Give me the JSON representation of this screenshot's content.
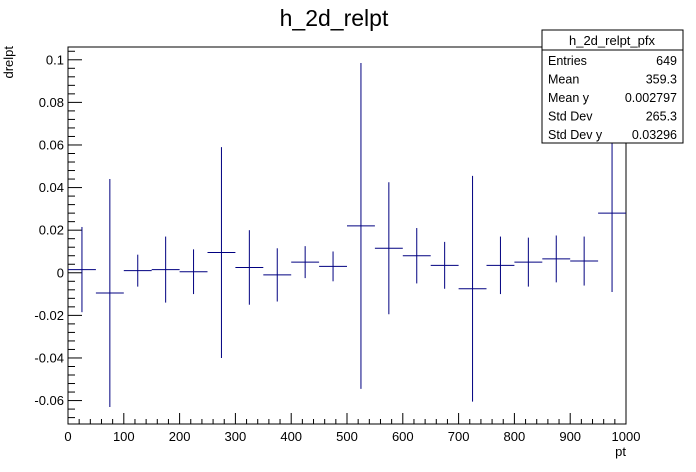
{
  "chart_data": {
    "type": "scatter",
    "title": "h_2d_relpt",
    "xlabel": "pt",
    "ylabel": "drelpt",
    "xlim": [
      0,
      1000
    ],
    "ylim": [
      -0.071,
      0.106
    ],
    "x_ticks": [
      0,
      100,
      200,
      300,
      400,
      500,
      600,
      700,
      800,
      900,
      1000
    ],
    "y_ticks": [
      -0.06,
      -0.04,
      -0.02,
      0,
      0.02,
      0.04,
      0.06,
      0.08,
      0.1
    ],
    "bin_width": 50,
    "color": "#000080",
    "grid": false,
    "points": [
      {
        "x": 25,
        "y": 0.0015,
        "err": 0.02
      },
      {
        "x": 75,
        "y": -0.0095,
        "err": 0.0535
      },
      {
        "x": 125,
        "y": 0.001,
        "err": 0.0075
      },
      {
        "x": 175,
        "y": 0.0015,
        "err": 0.0155
      },
      {
        "x": 225,
        "y": 0.0005,
        "err": 0.0105
      },
      {
        "x": 275,
        "y": 0.0095,
        "err": 0.0495
      },
      {
        "x": 325,
        "y": 0.0025,
        "err": 0.0175
      },
      {
        "x": 375,
        "y": -0.001,
        "err": 0.0125
      },
      {
        "x": 425,
        "y": 0.005,
        "err": 0.0075
      },
      {
        "x": 475,
        "y": 0.003,
        "err": 0.007
      },
      {
        "x": 525,
        "y": 0.022,
        "err": 0.0765
      },
      {
        "x": 575,
        "y": 0.0115,
        "err": 0.031
      },
      {
        "x": 625,
        "y": 0.008,
        "err": 0.013
      },
      {
        "x": 675,
        "y": 0.0035,
        "err": 0.011
      },
      {
        "x": 725,
        "y": -0.0075,
        "err": 0.053
      },
      {
        "x": 775,
        "y": 0.0035,
        "err": 0.0135
      },
      {
        "x": 825,
        "y": 0.005,
        "err": 0.0115
      },
      {
        "x": 875,
        "y": 0.0065,
        "err": 0.011
      },
      {
        "x": 925,
        "y": 0.0055,
        "err": 0.0115
      },
      {
        "x": 975,
        "y": 0.028,
        "err": 0.037
      }
    ],
    "stats_box": {
      "title": "h_2d_relpt_pfx",
      "rows": [
        {
          "label": "Entries",
          "value": "649"
        },
        {
          "label": "Mean",
          "value": "359.3"
        },
        {
          "label": "Mean y",
          "value": "0.002797"
        },
        {
          "label": "Std Dev",
          "value": "265.3"
        },
        {
          "label": "Std Dev y",
          "value": "0.03296"
        }
      ]
    }
  }
}
